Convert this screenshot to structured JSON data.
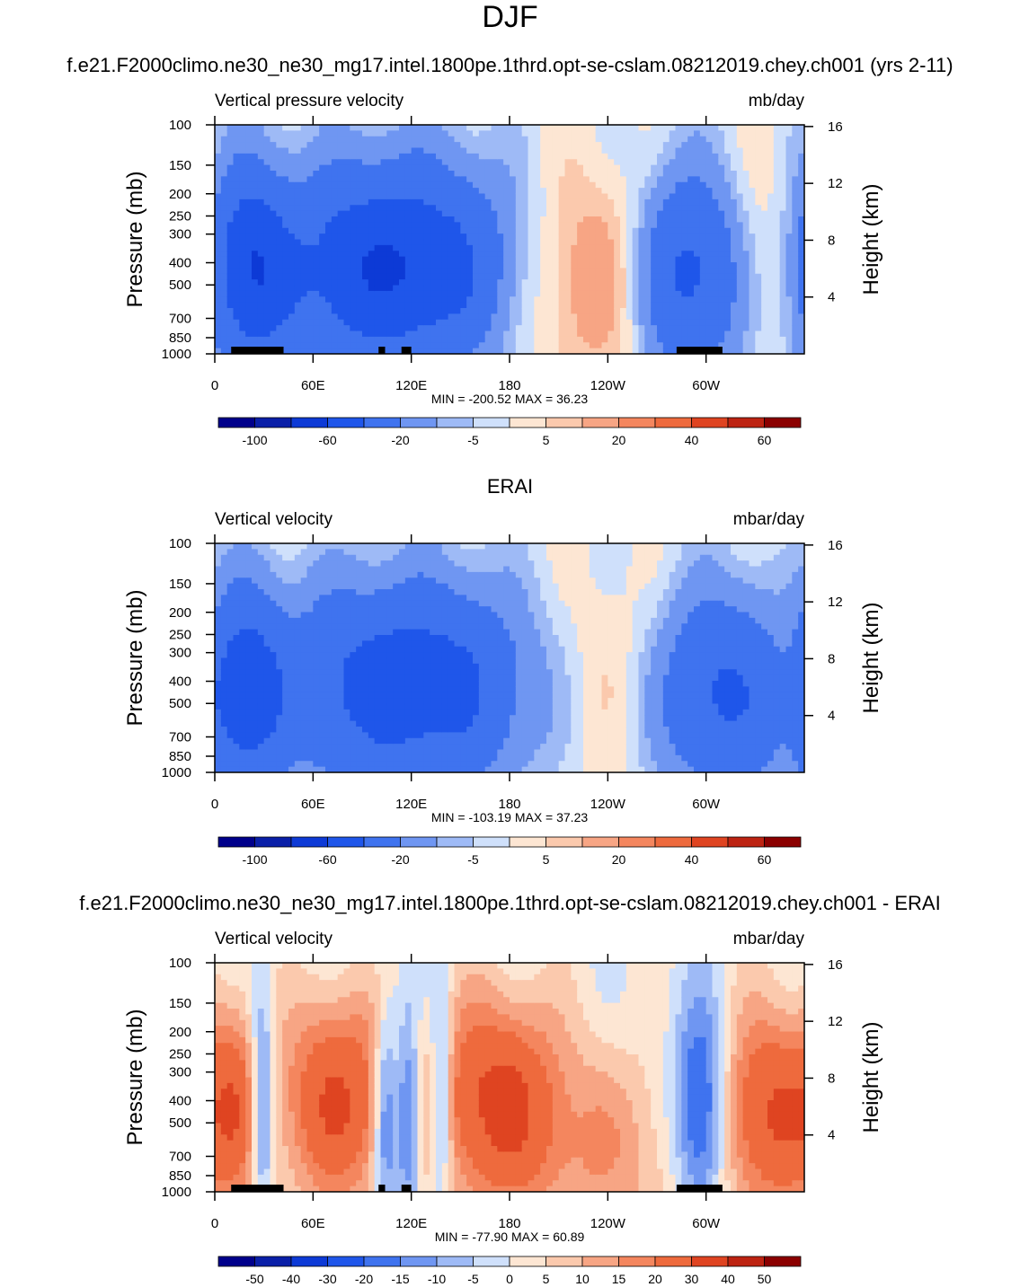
{
  "page": {
    "title": "DJF",
    "case_title": "f.e21.F2000climo.ne30_ne30_mg17.intel.1800pe.1thrd.opt-se-cslam.08212019.chey.ch001 (yrs 2-11)",
    "obs_title": "ERAI",
    "diff_title": "f.e21.F2000climo.ne30_ne30_mg17.intel.1800pe.1thrd.opt-se-cslam.08212019.chey.ch001 - ERAI"
  },
  "palette": {
    "blues": [
      "#00008b",
      "#0a1fa8",
      "#0d3ad6",
      "#1f56ea",
      "#3f73ef",
      "#6f96f2",
      "#9ebaf6",
      "#cfe0fb"
    ],
    "reds": [
      "#fde6d3",
      "#fbc9ad",
      "#f7a584",
      "#f4865e",
      "#ee6a3d",
      "#df4421",
      "#bd2312",
      "#8b0000"
    ],
    "land_mask": "#000000"
  },
  "chart_data": [
    {
      "type": "heatmap",
      "name": "model",
      "left_title": "Vertical pressure velocity",
      "right_title": "mb/day",
      "ylabel": "Pressure (mb)",
      "ylabel_right": "Height (km)",
      "x_ticks": [
        "0",
        "60E",
        "120E",
        "180",
        "120W",
        "60W"
      ],
      "y_ticks": [
        "100",
        "150",
        "200",
        "250",
        "300",
        "400",
        "500",
        "700",
        "850",
        "1000"
      ],
      "y_right_ticks": [
        "16",
        "12",
        "8",
        "4"
      ],
      "stats": "MIN = -200.52  MAX =  36.23",
      "colorbar_labels": [
        "-100",
        "-60",
        "-20",
        "-5",
        "5",
        "20",
        "40",
        "60"
      ],
      "colorbar_label_positions": [
        1,
        3,
        5,
        7,
        9,
        11,
        13,
        15
      ],
      "min": -200.52,
      "max": 36.23,
      "features": [
        {
          "type": "up",
          "lon": 22,
          "center": 420,
          "width_lon": 26,
          "amp": 60
        },
        {
          "type": "dn",
          "lon": 47,
          "center": 400,
          "width_lon": 16,
          "amp": 25
        },
        {
          "type": "up",
          "lon": 118,
          "center": 420,
          "width_lon": 60,
          "amp": 65
        },
        {
          "type": "dn",
          "lon": 225,
          "center": 450,
          "width_lon": 55,
          "amp": 30
        },
        {
          "type": "up",
          "lon": 290,
          "center": 450,
          "width_lon": 26,
          "amp": 60
        },
        {
          "type": "dn",
          "lon": 345,
          "center": 400,
          "width_lon": 25,
          "amp": 25
        }
      ],
      "land": [
        [
          10,
          42
        ],
        [
          100,
          104
        ],
        [
          114,
          120
        ],
        [
          282,
          310
        ]
      ]
    },
    {
      "type": "heatmap",
      "name": "obs",
      "left_title": "Vertical velocity",
      "right_title": "mbar/day",
      "ylabel": "Pressure (mb)",
      "ylabel_right": "Height (km)",
      "x_ticks": [
        "0",
        "60E",
        "120E",
        "180",
        "120W",
        "60W"
      ],
      "y_ticks": [
        "100",
        "150",
        "200",
        "250",
        "300",
        "400",
        "500",
        "700",
        "850",
        "1000"
      ],
      "y_right_ticks": [
        "16",
        "12",
        "8",
        "4"
      ],
      "stats": "MIN = -103.19  MAX =  37.23",
      "colorbar_labels": [
        "-100",
        "-60",
        "-20",
        "-5",
        "5",
        "20",
        "40",
        "60"
      ],
      "colorbar_label_positions": [
        1,
        3,
        5,
        7,
        9,
        11,
        13,
        15
      ],
      "min": -103.19,
      "max": 37.23,
      "features": [
        {
          "type": "up",
          "lon": 20,
          "center": 450,
          "width_lon": 24,
          "amp": 45
        },
        {
          "type": "dn",
          "lon": 45,
          "center": 450,
          "width_lon": 12,
          "amp": 15
        },
        {
          "type": "up",
          "lon": 125,
          "center": 420,
          "width_lon": 60,
          "amp": 55
        },
        {
          "type": "dn",
          "lon": 225,
          "center": 400,
          "width_lon": 50,
          "amp": 15
        },
        {
          "type": "up",
          "lon": 305,
          "center": 450,
          "width_lon": 28,
          "amp": 45
        },
        {
          "type": "dn",
          "lon": 350,
          "center": 350,
          "width_lon": 10,
          "amp": 10
        }
      ],
      "land": []
    },
    {
      "type": "heatmap",
      "name": "diff",
      "left_title": "Vertical velocity",
      "right_title": "mbar/day",
      "ylabel": "Pressure (mb)",
      "ylabel_right": "Height (km)",
      "x_ticks": [
        "0",
        "60E",
        "120E",
        "180",
        "120W",
        "60W"
      ],
      "y_ticks": [
        "100",
        "150",
        "200",
        "250",
        "300",
        "400",
        "500",
        "700",
        "850",
        "1000"
      ],
      "y_right_ticks": [
        "16",
        "12",
        "8",
        "4"
      ],
      "stats": "MIN = -77.90  MAX =  60.89",
      "colorbar_labels": [
        "-50",
        "-40",
        "-30",
        "-20",
        "-15",
        "-10",
        "-5",
        "0",
        "5",
        "10",
        "15",
        "20",
        "30",
        "40",
        "50"
      ],
      "colorbar_label_positions": [
        1,
        2,
        3,
        4,
        5,
        6,
        7,
        8,
        9,
        10,
        11,
        12,
        13,
        14,
        15
      ],
      "min": -77.9,
      "max": 60.89,
      "features": [
        {
          "type": "dn",
          "lon": 12,
          "center": 400,
          "width_lon": 10,
          "amp": 12
        },
        {
          "type": "up",
          "lon": 29,
          "center": 400,
          "width_lon": 5,
          "amp": 25
        },
        {
          "type": "dn",
          "lon": 75,
          "center": 400,
          "width_lon": 25,
          "amp": 30
        },
        {
          "type": "up",
          "lon": 104,
          "center": 450,
          "width_lon": 5,
          "amp": 25
        },
        {
          "type": "up",
          "lon": 118,
          "center": 450,
          "width_lon": 6,
          "amp": 28
        },
        {
          "type": "up",
          "lon": 138,
          "center": 400,
          "width_lon": 5,
          "amp": 25
        },
        {
          "type": "dn",
          "lon": 170,
          "center": 400,
          "width_lon": 30,
          "amp": 32
        },
        {
          "type": "dn",
          "lon": 240,
          "center": 700,
          "width_lon": 40,
          "amp": 12
        },
        {
          "type": "up",
          "lon": 297,
          "center": 450,
          "width_lon": 12,
          "amp": 35
        },
        {
          "type": "dn",
          "lon": 340,
          "center": 450,
          "width_lon": 28,
          "amp": 30
        }
      ],
      "land": [
        [
          10,
          42
        ],
        [
          100,
          104
        ],
        [
          114,
          120
        ],
        [
          282,
          310
        ]
      ]
    }
  ]
}
